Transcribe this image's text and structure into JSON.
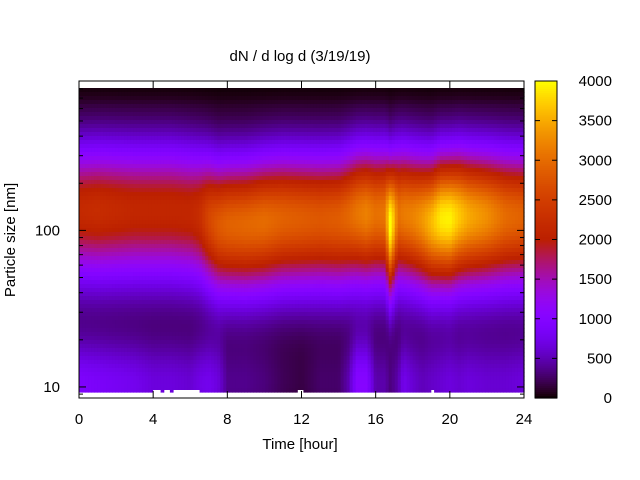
{
  "chart_data": {
    "type": "heatmap",
    "title": "dN / d log d (3/19/19)",
    "xlabel": "Time [hour]",
    "ylabel": "Particle size [nm]",
    "xlim": [
      0,
      24
    ],
    "ylim": [
      8.5,
      900
    ],
    "yscale": "log",
    "x_ticks": [
      0,
      4,
      8,
      12,
      16,
      20,
      24
    ],
    "y_ticks": [
      10,
      100
    ],
    "colorbar": {
      "range": [
        0,
        4000
      ],
      "ticks": [
        0,
        500,
        1000,
        1500,
        2000,
        2500,
        3000,
        3500,
        4000
      ],
      "palette": "black-purple-red-orange-yellow"
    },
    "time_hours": [
      0,
      1,
      2,
      3,
      4,
      5,
      6,
      6.5,
      7,
      7.5,
      8,
      9,
      10,
      11,
      12,
      13,
      14,
      14.5,
      15,
      15.5,
      16,
      16.5,
      16.8,
      17.2,
      17.5,
      18,
      18.5,
      19,
      19.5,
      20,
      20.5,
      21,
      22,
      23,
      24
    ],
    "mode_diameter_nm": [
      140,
      140,
      140,
      140,
      140,
      140,
      135,
      130,
      120,
      110,
      110,
      110,
      115,
      120,
      120,
      120,
      120,
      125,
      130,
      130,
      130,
      130,
      110,
      130,
      130,
      125,
      120,
      115,
      120,
      120,
      125,
      125,
      125,
      125,
      125
    ],
    "peak_concentration": [
      1800,
      1850,
      1800,
      1750,
      1750,
      1750,
      1750,
      1850,
      2200,
      2400,
      2500,
      2550,
      2600,
      2500,
      2450,
      2400,
      2450,
      2550,
      2700,
      2800,
      2650,
      2700,
      3700,
      2650,
      2750,
      2800,
      2950,
      3200,
      3500,
      3550,
      3300,
      3100,
      2900,
      2600,
      2500
    ],
    "nucleation_conc_10nm": [
      900,
      850,
      800,
      750,
      650,
      650,
      600,
      700,
      750,
      650,
      350,
      350,
      300,
      200,
      150,
      250,
      250,
      450,
      1000,
      1000,
      450,
      450,
      300,
      450,
      750,
      600,
      500,
      550,
      600,
      650,
      600,
      650,
      600,
      600,
      650
    ],
    "missing_data_note": "white gaps near the smallest size bin around 4-6.5 h, 12 h and 19 h"
  }
}
